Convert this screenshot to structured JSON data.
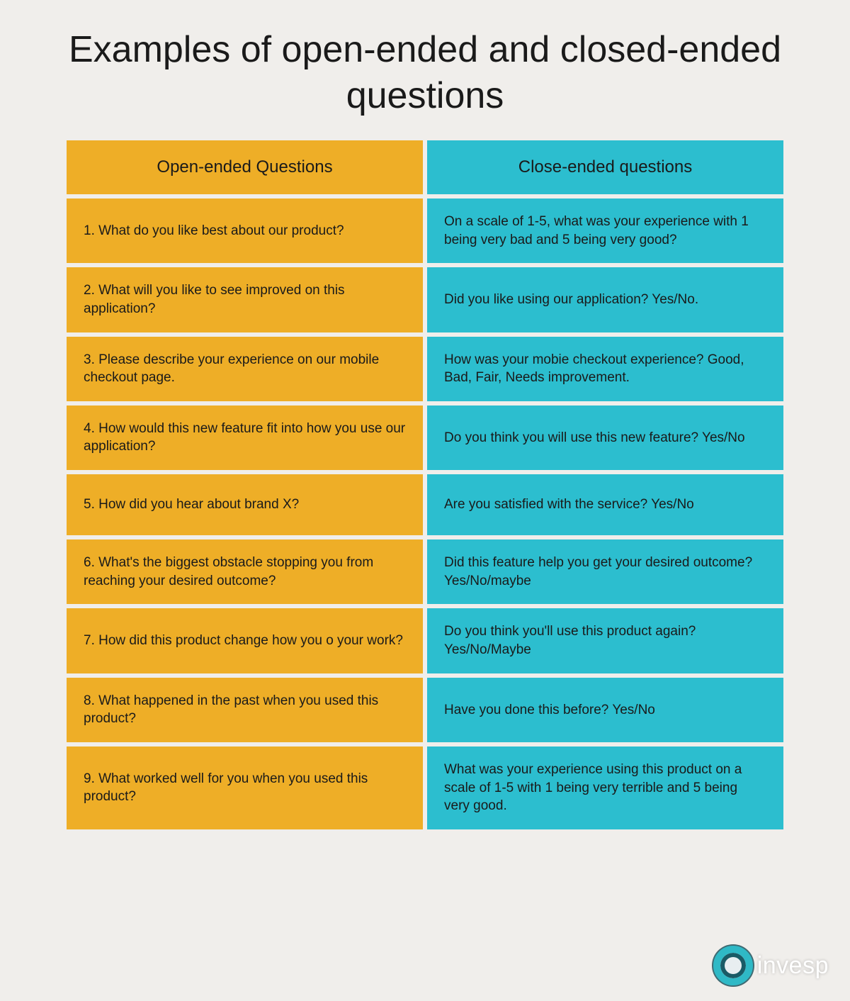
{
  "title": "Examples of open-ended and closed-ended questions",
  "colors": {
    "page_bg": "#f0eeeb",
    "left_col": "#eeae27",
    "right_col": "#2cbecf",
    "text": "#1a1a1a",
    "logo_ring_outer": "#2fb9c6",
    "logo_ring_inner": "#1a5b66",
    "logo_text": "#ffffff"
  },
  "headers": {
    "left": "Open-ended Questions",
    "right": "Close-ended questions"
  },
  "rows": [
    {
      "open": "1. What do you like best about our product?",
      "closed": "On a scale of 1-5, what was your experience with 1 being very bad and 5 being very good?"
    },
    {
      "open": "2. What will you like to see improved on this application?",
      "closed": "Did you like using our application? Yes/No."
    },
    {
      "open": "3. Please describe your experience on our mobile checkout page.",
      "closed": "How was your mobie checkout experience? Good, Bad, Fair, Needs improvement."
    },
    {
      "open": "4. How would this new feature fit into how you use our application?",
      "closed": "Do you think you will use this new feature? Yes/No"
    },
    {
      "open": "5. How did you hear about brand X?",
      "closed": "Are you satisfied with the service? Yes/No"
    },
    {
      "open": "6. What's the biggest obstacle stopping you from reaching your desired outcome?",
      "closed": "Did this feature help you get your desired outcome? Yes/No/maybe"
    },
    {
      "open": "7. How did this product change how you o your work?",
      "closed": "Do you think you'll use this product again? Yes/No/Maybe"
    },
    {
      "open": "8. What happened in the past when you used this product?",
      "closed": "Have you done this before? Yes/No"
    },
    {
      "open": "9. What worked well for you when you used this product?",
      "closed": "What was your experience using this product on a scale of 1-5 with 1 being very terrible and 5 being very good."
    }
  ],
  "logo": {
    "text": "invesp"
  }
}
